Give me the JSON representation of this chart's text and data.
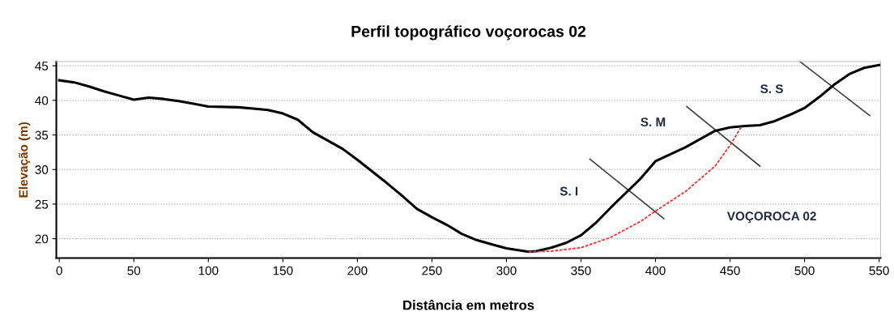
{
  "chart_data": {
    "type": "line",
    "title": "Perfil topográfico voçorocas 02",
    "xlabel": "Distância em metros",
    "ylabel": "Elevação (m)",
    "xlim": [
      -2,
      551
    ],
    "ylim": [
      17.2,
      45.6
    ],
    "xticks": [
      0,
      50,
      100,
      150,
      200,
      250,
      300,
      350,
      400,
      450,
      500,
      550
    ],
    "yticks": [
      20,
      25,
      30,
      35,
      40,
      45
    ],
    "grid": "y",
    "marker": "none",
    "series": [
      {
        "color": "#000000",
        "line_style": "solid",
        "x": [
          0,
          10,
          20,
          30,
          40,
          50,
          60,
          70,
          80,
          90,
          100,
          120,
          130,
          140,
          150,
          160,
          170,
          180,
          190,
          200,
          210,
          220,
          230,
          240,
          250,
          260,
          270,
          280,
          290,
          300,
          315,
          320,
          330,
          340,
          350,
          360,
          370,
          380,
          390,
          400,
          410,
          420,
          430,
          440,
          450,
          460,
          470,
          480,
          490,
          500,
          510,
          520,
          530,
          540,
          550
        ],
        "values": [
          42.9,
          42.6,
          42,
          41.3,
          40.7,
          40.1,
          40.4,
          40.2,
          39.9,
          39.5,
          39.1,
          39.0,
          38.8,
          38.6,
          38.1,
          37.2,
          35.4,
          34.2,
          33,
          31.4,
          29.7,
          28,
          26.2,
          24.3,
          23.1,
          22,
          20.7,
          19.8,
          19.2,
          18.6,
          18.1,
          18.2,
          18.7,
          19.4,
          20.5,
          22.3,
          24.5,
          26.6,
          28.7,
          31.2,
          32.2,
          33.2,
          34.4,
          35.6,
          36.1,
          36.3,
          36.4,
          37,
          37.9,
          38.9,
          40.5,
          42.3,
          43.8,
          44.7,
          45.1
        ]
      },
      {
        "color": "#ff2a2a",
        "line_style": "dashed",
        "x": [
          315,
          330,
          350,
          370,
          390,
          400,
          420,
          440,
          450,
          458
        ],
        "values": [
          18.1,
          18.2,
          18.7,
          20.2,
          22.5,
          24,
          26.8,
          30.5,
          33.5,
          36.3
        ]
      },
      {
        "color": "#404040",
        "line_style": "solid",
        "x": [
          356,
          405.6
        ],
        "values": [
          31.5,
          22.9
        ]
      },
      {
        "color": "#404040",
        "line_style": "solid",
        "x": [
          421,
          470
        ],
        "values": [
          39.1,
          30.5
        ]
      },
      {
        "color": "#404040",
        "line_style": "solid",
        "x": [
          497,
          543.7
        ],
        "values": [
          45.6,
          37.8
        ]
      }
    ],
    "annotations": [
      "S. I",
      "S. M",
      "S. S",
      "VOÇOROCA 02"
    ]
  }
}
